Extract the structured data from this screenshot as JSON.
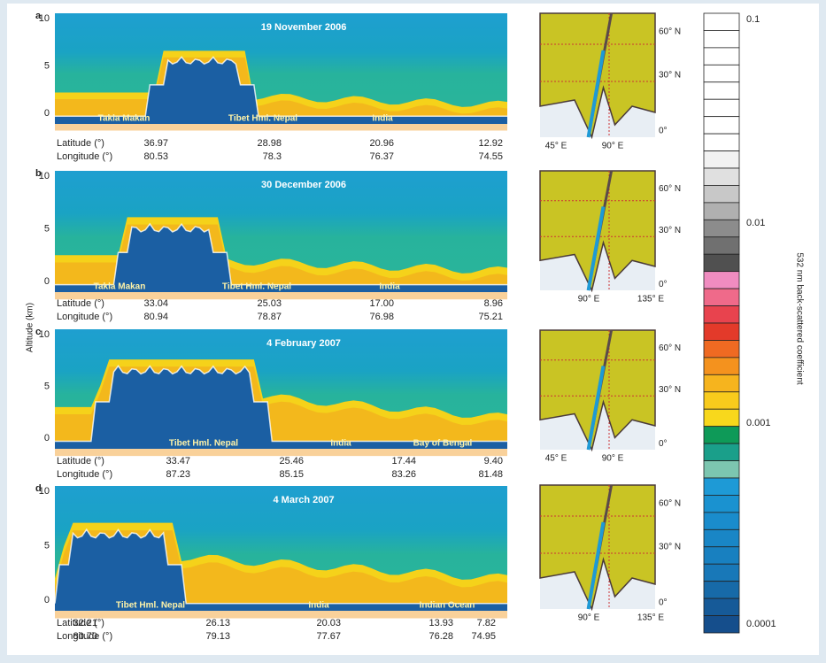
{
  "axis_label": "Altitude (km)",
  "colorbar": {
    "label": "532 nm back-scattered coefficient",
    "ticks": [
      "0.1",
      "0.01",
      "0.001",
      "0.0001"
    ]
  },
  "panels": [
    {
      "letter": "a",
      "date": "19 November 2006",
      "ticks": [
        "10",
        "5",
        "0"
      ],
      "places": [
        "Takla Makan",
        "Tibet Hml. Nepal",
        "India"
      ],
      "latitude_label": "Latitude (°)",
      "longitude_label": "Longitude (°)",
      "latitude": [
        "36.97",
        "28.98",
        "20.96",
        "12.92"
      ],
      "longitude": [
        "80.53",
        "78.3",
        "76.37",
        "74.55"
      ],
      "map": {
        "lat_labels": [
          "60° N",
          "30° N",
          "0°"
        ],
        "lon_labels": [
          "45° E",
          "90° E"
        ]
      }
    },
    {
      "letter": "b",
      "date": "30 December 2006",
      "ticks": [
        "10",
        "5",
        "0"
      ],
      "places": [
        "Takla Makan",
        "Tibet Hml. Nepal",
        "India"
      ],
      "latitude_label": "Latitude (°)",
      "longitude_label": "Longitude (°)",
      "latitude": [
        "33.04",
        "25.03",
        "17.00",
        "8.96"
      ],
      "longitude": [
        "80.94",
        "78.87",
        "76.98",
        "75.21"
      ],
      "map": {
        "lat_labels": [
          "60° N",
          "30° N",
          "0°"
        ],
        "lon_labels": [
          "90° E",
          "135° E"
        ]
      }
    },
    {
      "letter": "c",
      "date": "4 February 2007",
      "ticks": [
        "10",
        "5",
        "0"
      ],
      "places": [
        "Tibet Hml. Nepal",
        "India",
        "Bay of Bengal"
      ],
      "latitude_label": "Latitude (°)",
      "longitude_label": "Longitude (°)",
      "latitude": [
        "33.47",
        "25.46",
        "17.44",
        "9.40"
      ],
      "longitude": [
        "87.23",
        "85.15",
        "83.26",
        "81.48"
      ],
      "map": {
        "lat_labels": [
          "60° N",
          "30° N",
          "0°"
        ],
        "lon_labels": [
          "45° E",
          "90° E"
        ]
      }
    },
    {
      "letter": "d",
      "date": "4 March 2007",
      "ticks": [
        "10",
        "5",
        "0"
      ],
      "places": [
        "Tibet Hml. Nepal",
        "India",
        "Indian Ocean"
      ],
      "latitude_label": "Latitude (°)",
      "longitude_label": "Longitude (°)",
      "latitude": [
        "32.21",
        "26.13",
        "20.03",
        "13.93",
        "7.82"
      ],
      "longitude": [
        "80.70",
        "79.13",
        "77.67",
        "76.28",
        "74.95"
      ],
      "map": {
        "lat_labels": [
          "60° N",
          "30° N",
          "0°"
        ],
        "lon_labels": [
          "90° E",
          "135° E"
        ]
      }
    }
  ]
}
